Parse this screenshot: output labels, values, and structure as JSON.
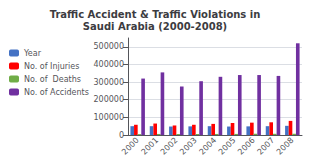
{
  "chart_data": {
    "type": "bar",
    "title": "Traffic Accident & Traffic Violations in\nSaudi Arabia (2000-2008)",
    "categories": [
      "2000",
      "2001",
      "2002",
      "2003",
      "2004",
      "2005",
      "2006",
      "2007",
      "2008"
    ],
    "series": [
      {
        "name": "Year",
        "color": "#4472C4",
        "values": [
          50000,
          50000,
          48000,
          49000,
          50000,
          48000,
          49000,
          50000,
          52000
        ]
      },
      {
        "name": "No. of Injuries",
        "color": "#FF0000",
        "values": [
          58000,
          65000,
          54000,
          58000,
          63000,
          68000,
          70000,
          72000,
          80000
        ]
      },
      {
        "name": "No. of  Deaths",
        "color": "#70AD47",
        "values": [
          5000,
          6000,
          5500,
          5800,
          6000,
          6200,
          6500,
          6800,
          7000
        ]
      },
      {
        "name": "No. of Accidents",
        "color": "#7030A0",
        "values": [
          320000,
          355000,
          275000,
          305000,
          330000,
          340000,
          340000,
          335000,
          520000
        ]
      }
    ],
    "ylim": [
      0,
      550000
    ],
    "yticks": [
      0,
      100000,
      200000,
      300000,
      400000,
      500000
    ],
    "grid": true,
    "legend": "left"
  }
}
